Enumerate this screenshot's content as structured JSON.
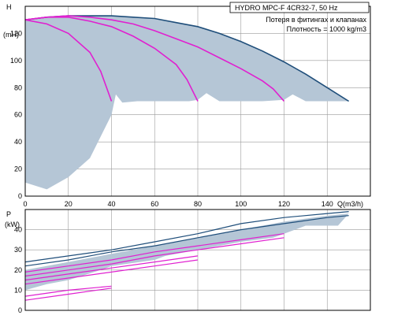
{
  "header": {
    "model": "HYDRO MPC-F 4CR32-7, 50 Hz",
    "note": "Потеря в фитингах и клапанах",
    "density": "Плотность = 1000 kg/m3"
  },
  "chart_data": [
    {
      "type": "line",
      "name": "head-chart",
      "ylabel": "H",
      "yunit": "(mH)",
      "xlabel": "Q(m3/h)",
      "xlim": [
        0,
        160
      ],
      "ylim": [
        0,
        140
      ],
      "xticks": [
        0,
        20,
        40,
        60,
        80,
        100,
        120,
        140
      ],
      "yticks": [
        0,
        20,
        40,
        60,
        80,
        100,
        120
      ],
      "grid": true,
      "colors": {
        "region": "#b5c6d6",
        "max_curve": "#1f4e7a",
        "stage_curves": "#e020d0"
      },
      "region": [
        [
          0,
          10
        ],
        [
          10,
          5
        ],
        [
          20,
          14
        ],
        [
          30,
          28
        ],
        [
          40,
          60
        ],
        [
          42,
          75
        ],
        [
          45,
          69
        ],
        [
          52,
          70
        ],
        [
          60,
          70
        ],
        [
          68,
          70
        ],
        [
          72,
          70
        ],
        [
          76,
          70
        ],
        [
          80,
          71
        ],
        [
          84,
          76
        ],
        [
          90,
          70
        ],
        [
          100,
          70
        ],
        [
          110,
          70
        ],
        [
          120,
          71
        ],
        [
          124,
          75
        ],
        [
          130,
          70
        ],
        [
          150,
          70
        ],
        [
          140,
          80
        ],
        [
          130,
          90
        ],
        [
          120,
          99
        ],
        [
          110,
          107
        ],
        [
          100,
          114
        ],
        [
          90,
          120
        ],
        [
          80,
          125
        ],
        [
          70,
          128
        ],
        [
          60,
          131
        ],
        [
          50,
          132
        ],
        [
          40,
          133
        ],
        [
          30,
          133
        ],
        [
          20,
          133
        ],
        [
          10,
          132
        ],
        [
          0,
          130
        ]
      ],
      "series": [
        {
          "role": "max",
          "x": [
            0,
            10,
            20,
            30,
            40,
            50,
            60,
            70,
            80,
            90,
            100,
            110,
            120,
            130,
            140,
            150
          ],
          "y": [
            130,
            132,
            133,
            133,
            133,
            132,
            131,
            128,
            125,
            120,
            114,
            107,
            99,
            90,
            80,
            70
          ]
        },
        {
          "role": "stage",
          "x": [
            0,
            10,
            20,
            30,
            35,
            40
          ],
          "y": [
            130,
            127,
            120,
            106,
            92,
            70
          ]
        },
        {
          "role": "stage",
          "x": [
            0,
            10,
            20,
            30,
            40,
            50,
            60,
            70,
            75,
            80
          ],
          "y": [
            130,
            132,
            132,
            129,
            125,
            118,
            109,
            97,
            86,
            70
          ]
        },
        {
          "role": "stage",
          "x": [
            0,
            10,
            20,
            30,
            40,
            50,
            60,
            70,
            80,
            90,
            100,
            110,
            115,
            120
          ],
          "y": [
            130,
            132,
            133,
            132,
            130,
            127,
            122,
            116,
            110,
            102,
            94,
            85,
            79,
            70
          ]
        }
      ]
    },
    {
      "type": "line",
      "name": "power-chart",
      "ylabel": "P",
      "yunit": "(kW)",
      "xlim": [
        0,
        160
      ],
      "ylim": [
        0,
        50
      ],
      "xticks": [
        0,
        20,
        40,
        60,
        80,
        100,
        120,
        140
      ],
      "yticks": [
        0,
        10,
        20,
        30,
        40
      ],
      "grid": true,
      "colors": {
        "region": "#b5c6d6",
        "max_curve": "#1f4e7a",
        "stage_curves": "#e020d0"
      },
      "region": [
        [
          0,
          20
        ],
        [
          20,
          24
        ],
        [
          40,
          28
        ],
        [
          60,
          32
        ],
        [
          80,
          36
        ],
        [
          100,
          40
        ],
        [
          120,
          44
        ],
        [
          140,
          47
        ],
        [
          150,
          48
        ],
        [
          145,
          42
        ],
        [
          130,
          42
        ],
        [
          120,
          38
        ],
        [
          115,
          36
        ],
        [
          100,
          34
        ],
        [
          85,
          31
        ],
        [
          80,
          30
        ],
        [
          65,
          27
        ],
        [
          60,
          25
        ],
        [
          40,
          22
        ],
        [
          35,
          20
        ],
        [
          20,
          15
        ],
        [
          10,
          13
        ],
        [
          0,
          10
        ]
      ],
      "series": [
        {
          "role": "max",
          "x": [
            0,
            20,
            40,
            60,
            80,
            100,
            120,
            140,
            150
          ],
          "y": [
            24,
            27,
            30,
            34,
            38,
            43,
            46,
            48,
            49
          ]
        },
        {
          "role": "max",
          "x": [
            0,
            20,
            40,
            60,
            80,
            100,
            120,
            140,
            150
          ],
          "y": [
            22,
            25,
            29,
            32,
            36,
            40,
            43,
            46,
            47
          ]
        },
        {
          "role": "stage",
          "x": [
            0,
            20,
            40
          ],
          "y": [
            7,
            10,
            12
          ]
        },
        {
          "role": "stage",
          "x": [
            0,
            20,
            40
          ],
          "y": [
            5,
            8,
            11
          ]
        },
        {
          "role": "stage",
          "x": [
            0,
            20,
            40,
            60,
            80
          ],
          "y": [
            15,
            18,
            21,
            24,
            27
          ]
        },
        {
          "role": "stage",
          "x": [
            0,
            20,
            40,
            60,
            80
          ],
          "y": [
            13,
            16,
            19,
            22,
            25
          ]
        },
        {
          "role": "stage",
          "x": [
            0,
            20,
            40,
            60,
            80,
            100,
            120
          ],
          "y": [
            19,
            22,
            25,
            29,
            32,
            35,
            38
          ]
        },
        {
          "role": "stage",
          "x": [
            0,
            20,
            40,
            60,
            80,
            100,
            120
          ],
          "y": [
            17,
            20,
            23,
            27,
            30,
            33,
            36
          ]
        }
      ]
    }
  ]
}
